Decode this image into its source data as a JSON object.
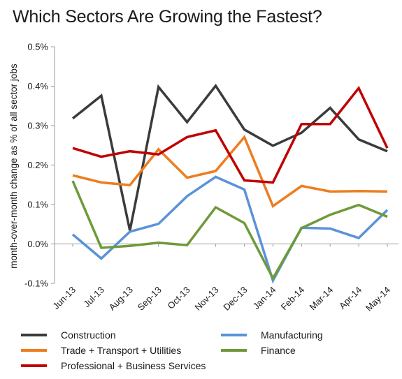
{
  "chart_data": {
    "type": "line",
    "title": "Which Sectors Are Growing the Fastest?",
    "ylabel": "month-over-month change as % of all sector jobs",
    "xlabel": "",
    "ylim": [
      -0.1,
      0.5
    ],
    "yticks": [
      -0.1,
      0.0,
      0.1,
      0.2,
      0.3,
      0.4,
      0.5
    ],
    "ytick_labels": [
      "-0.1%",
      "0.0%",
      "0.1%",
      "0.2%",
      "0.3%",
      "0.4%",
      "0.5%"
    ],
    "grid": false,
    "legend_position": "bottom",
    "categories": [
      "Jun-13",
      "Jul-13",
      "Aug-13",
      "Sep-13",
      "Oct-13",
      "Nov-13",
      "Dec-13",
      "Jan-14",
      "Feb-14",
      "Mar-14",
      "Apr-14",
      "May-14"
    ],
    "series": [
      {
        "name": "Construction",
        "color": "#3b3b3b",
        "values": [
          0.318,
          0.376,
          0.034,
          0.398,
          0.309,
          0.401,
          0.29,
          0.249,
          0.282,
          0.345,
          0.265,
          0.235
        ]
      },
      {
        "name": "Manufacturing",
        "color": "#5b92d9",
        "values": [
          0.024,
          -0.037,
          0.031,
          0.051,
          0.121,
          0.17,
          0.138,
          -0.093,
          0.041,
          0.039,
          0.015,
          0.086
        ]
      },
      {
        "name": "Trade + Transport + Utilities",
        "color": "#ed7d1f",
        "values": [
          0.174,
          0.156,
          0.149,
          0.24,
          0.168,
          0.185,
          0.271,
          0.096,
          0.147,
          0.133,
          0.134,
          0.133
        ]
      },
      {
        "name": "Finance",
        "color": "#6e9a3a",
        "values": [
          0.16,
          -0.01,
          -0.005,
          0.003,
          -0.003,
          0.093,
          0.053,
          -0.087,
          0.04,
          0.074,
          0.099,
          0.069
        ]
      },
      {
        "name": "Professional + Business Services",
        "color": "#c00000",
        "values": [
          0.243,
          0.221,
          0.235,
          0.227,
          0.271,
          0.288,
          0.161,
          0.156,
          0.304,
          0.304,
          0.395,
          0.243
        ]
      }
    ]
  }
}
